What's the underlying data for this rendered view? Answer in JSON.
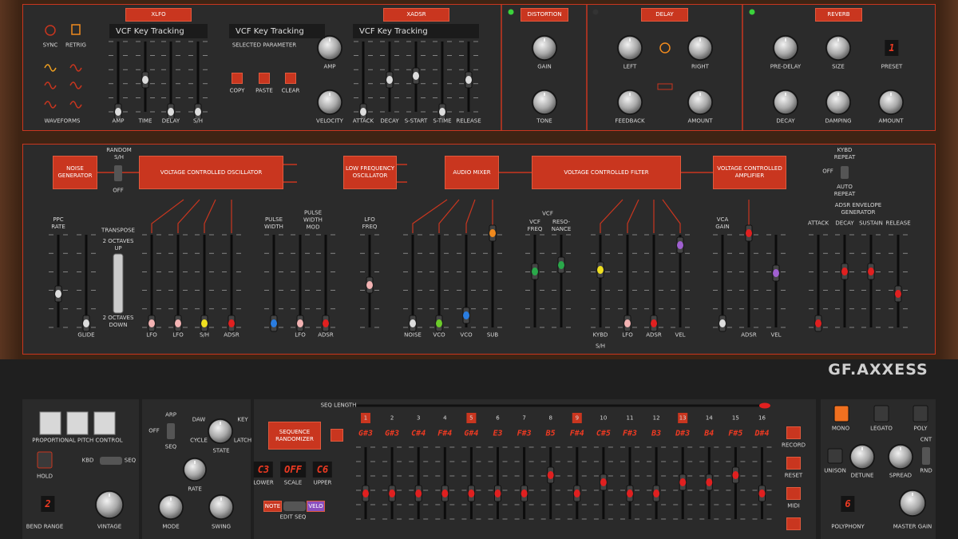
{
  "top": {
    "xlfo": {
      "title": "XLFO",
      "sync": "SYNC",
      "retrig": "RETRIG",
      "waveforms": "WAVEFORMS",
      "display": "VCF Key Tracking",
      "sliders": [
        "AMP",
        "TIME",
        "DELAY",
        "S/H"
      ]
    },
    "parameter": {
      "display": "VCF Key Tracking",
      "label": "SELECTED PARAMETER",
      "buttons": [
        "COPY",
        "PASTE",
        "CLEAR"
      ]
    },
    "xadsr": {
      "title": "XADSR",
      "knobs": [
        "AMP",
        "VELOCITY"
      ],
      "display": "VCF Key Tracking",
      "sliders": [
        "ATTACK",
        "DECAY",
        "S-START",
        "S-TIME",
        "RELEASE"
      ]
    },
    "distortion": {
      "title": "DISTORTION",
      "knobs": [
        "GAIN",
        "TONE"
      ]
    },
    "delay": {
      "title": "DELAY",
      "knobs": [
        "LEFT",
        "RIGHT",
        "FEEDBACK",
        "AMOUNT"
      ]
    },
    "reverb": {
      "title": "REVERB",
      "knobs": [
        "PRE-DELAY",
        "SIZE",
        "DECAY",
        "DAMPING",
        "AMOUNT"
      ],
      "preset_label": "PRESET",
      "preset": 1
    }
  },
  "mod": {
    "modules": [
      "NOISE GENERATOR",
      "VOLTAGE CONTROLLED OSCILLATOR",
      "LOW FREQUENCY OSCILLATOR",
      "AUDIO MIXER",
      "VOLTAGE CONTROLLED FILTER",
      "VOLTAGE CONTROLLED AMPLIFIER"
    ],
    "labels": [
      "RANDOM S/H",
      "OFF",
      "KYBD REPEAT",
      "OFF",
      "AUTO REPEAT",
      "PPC RATE",
      "TRANSPOSE",
      "2 OCTAVES UP",
      "2 OCTAVES DOWN",
      "GLIDE",
      "LFO",
      "LFO",
      "S/H",
      "ADSR",
      "PULSE WIDTH",
      "PULSE WIDTH MOD",
      "LFO",
      "ADSR",
      "LFO FREQ",
      "NOISE",
      "VCO",
      "VCO",
      "SUB",
      "VCF",
      "VCF FREQ",
      "RESO-NANCE",
      "KYBD",
      "S/H",
      "LFO",
      "ADSR",
      "VEL",
      "VCA GAIN",
      "ADSR",
      "VEL",
      "ADSR ENVELOPE GENERATOR",
      "ATTACK",
      "DECAY",
      "SUSTAIN",
      "RELEASE"
    ]
  },
  "bottom": {
    "logo": "GF.AXXESS",
    "left": {
      "labels": [
        "PROPORTIONAL PITCH CONTROL",
        "HOLD",
        "KBD",
        "SEQ",
        "BEND RANGE",
        "VINTAGE"
      ],
      "bend_range": 2
    },
    "arp": {
      "labels": [
        "OFF",
        "ARP",
        "SEQ",
        "DAW",
        "KEY",
        "CYCLE",
        "LATCH",
        "STATE",
        "RATE",
        "MODE",
        "SWING"
      ]
    },
    "seq": {
      "randomizer": "SEQUENCE RANDOMIZER",
      "displays": [
        "C3",
        "OFF",
        "C6"
      ],
      "display_labels": [
        "LOWER",
        "SCALE",
        "UPPER"
      ],
      "note": "NOTE",
      "velo": "VELO",
      "edit": "EDIT SEQ",
      "length_label": "SEQ LENGTH",
      "steps": [
        1,
        2,
        3,
        4,
        5,
        6,
        7,
        8,
        9,
        10,
        11,
        12,
        13,
        14,
        15,
        16
      ],
      "notes": [
        "G#3",
        "G#3",
        "C#4",
        "F#4",
        "G#4",
        "E3",
        "F#3",
        "B5",
        "F#4",
        "C#5",
        "F#3",
        "B3",
        "D#3",
        "B4",
        "F#5",
        "D#4"
      ],
      "buttons": [
        "RECORD",
        "RESET",
        "MIDI"
      ]
    },
    "voice": {
      "labels": [
        "MONO",
        "LEGATO",
        "POLY",
        "UNISON",
        "DETUNE",
        "SPREAD",
        "CNT",
        "RND",
        "POLYPHONY",
        "MASTER GAIN"
      ],
      "polyphony": 6
    }
  }
}
